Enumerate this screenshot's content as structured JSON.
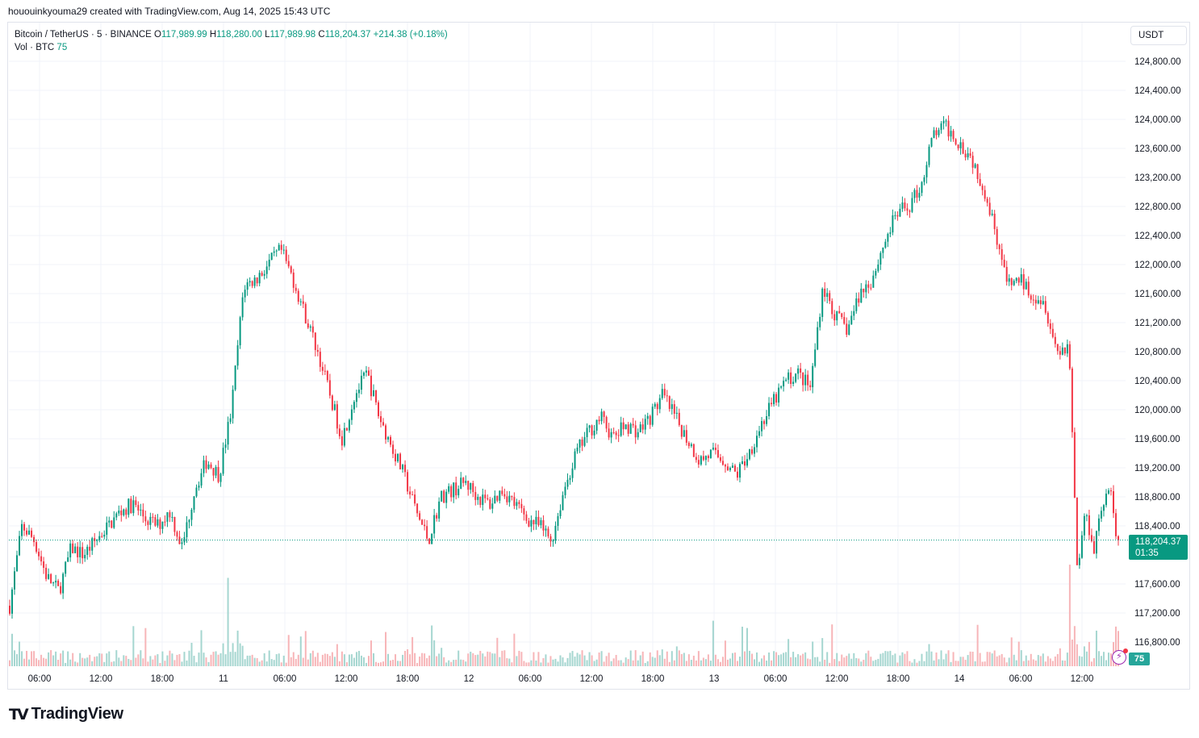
{
  "caption": "hououinkyouma29 created with TradingView.com, Aug 14, 2025 15:43 UTC",
  "legend": {
    "symbol": "Bitcoin / TetherUS · 5 · BINANCE",
    "open_label": "O",
    "open": "117,989.99",
    "high_label": "H",
    "high": "118,280.00",
    "low_label": "L",
    "low": "117,989.98",
    "close_label": "C",
    "close": "118,204.37",
    "change": "+214.38 (+0.18%)",
    "vol_label": "Vol · BTC",
    "vol_value": "75"
  },
  "currency_button": "USDT",
  "last_price": {
    "price": "118,204.37",
    "countdown": "01:35"
  },
  "volume_badge": "75",
  "brand": "TradingView",
  "colors": {
    "up": "#089981",
    "down": "#f23645",
    "vol_up": "#a5d6d0",
    "vol_down": "#f7b5b8",
    "grid": "#f0f3fa",
    "axis_text": "#131722"
  },
  "chart_data": {
    "type": "candlestick",
    "timeframe": "5",
    "y_ticks": [
      "124,800.00",
      "124,400.00",
      "124,000.00",
      "123,600.00",
      "123,200.00",
      "122,800.00",
      "122,400.00",
      "122,000.00",
      "121,600.00",
      "121,200.00",
      "120,800.00",
      "120,400.00",
      "120,000.00",
      "119,600.00",
      "119,200.00",
      "118,800.00",
      "118,400.00",
      "117,600.00",
      "117,200.00",
      "116,800.00"
    ],
    "x_ticks": [
      "06:00",
      "12:00",
      "18:00",
      "11",
      "06:00",
      "12:00",
      "18:00",
      "12",
      "06:00",
      "12:00",
      "18:00",
      "13",
      "06:00",
      "12:00",
      "18:00",
      "14",
      "06:00",
      "12:00"
    ],
    "ylim": [
      116800,
      124800
    ],
    "price_path": [
      [
        0,
        117300
      ],
      [
        3,
        118400
      ],
      [
        6,
        118200
      ],
      [
        9,
        117700
      ],
      [
        12,
        117500
      ],
      [
        15,
        118100
      ],
      [
        18,
        118000
      ],
      [
        21,
        118200
      ],
      [
        24,
        118400
      ],
      [
        27,
        118600
      ],
      [
        30,
        118700
      ],
      [
        33,
        118500
      ],
      [
        36,
        118400
      ],
      [
        39,
        118600
      ],
      [
        42,
        118100
      ],
      [
        45,
        118900
      ],
      [
        48,
        119300
      ],
      [
        51,
        119100
      ],
      [
        54,
        120000
      ],
      [
        57,
        121700
      ],
      [
        60,
        121800
      ],
      [
        63,
        122000
      ],
      [
        66,
        122200
      ],
      [
        69,
        121800
      ],
      [
        72,
        121300
      ],
      [
        75,
        120800
      ],
      [
        78,
        120200
      ],
      [
        81,
        119600
      ],
      [
        84,
        120200
      ],
      [
        87,
        120500
      ],
      [
        90,
        119900
      ],
      [
        93,
        119500
      ],
      [
        96,
        119100
      ],
      [
        99,
        118600
      ],
      [
        102,
        118200
      ],
      [
        105,
        118800
      ],
      [
        108,
        118900
      ],
      [
        111,
        119000
      ],
      [
        114,
        118800
      ],
      [
        117,
        118700
      ],
      [
        120,
        118900
      ],
      [
        123,
        118700
      ],
      [
        126,
        118500
      ],
      [
        129,
        118400
      ],
      [
        132,
        118200
      ],
      [
        135,
        118900
      ],
      [
        138,
        119400
      ],
      [
        141,
        119700
      ],
      [
        144,
        119900
      ],
      [
        147,
        119600
      ],
      [
        150,
        119800
      ],
      [
        153,
        119700
      ],
      [
        156,
        119900
      ],
      [
        159,
        120200
      ],
      [
        162,
        119900
      ],
      [
        165,
        119600
      ],
      [
        168,
        119300
      ],
      [
        171,
        119400
      ],
      [
        174,
        119300
      ],
      [
        177,
        119100
      ],
      [
        180,
        119400
      ],
      [
        183,
        119800
      ],
      [
        186,
        120100
      ],
      [
        189,
        120400
      ],
      [
        192,
        120500
      ],
      [
        195,
        120300
      ],
      [
        198,
        121700
      ],
      [
        201,
        121300
      ],
      [
        204,
        121100
      ],
      [
        207,
        121600
      ],
      [
        210,
        121800
      ],
      [
        213,
        122300
      ],
      [
        216,
        122700
      ],
      [
        219,
        122800
      ],
      [
        222,
        123100
      ],
      [
        225,
        123800
      ],
      [
        228,
        123900
      ],
      [
        231,
        123700
      ],
      [
        234,
        123500
      ],
      [
        237,
        123100
      ],
      [
        240,
        122500
      ],
      [
        243,
        121700
      ],
      [
        246,
        121800
      ],
      [
        249,
        121600
      ],
      [
        252,
        121500
      ],
      [
        255,
        120800
      ],
      [
        258,
        120900
      ],
      [
        260,
        117800
      ],
      [
        262,
        118600
      ],
      [
        264,
        118100
      ],
      [
        266,
        118700
      ],
      [
        268,
        118900
      ],
      [
        270,
        118000
      ]
    ],
    "last_price": 118204.37,
    "volume_scale": "BTC"
  }
}
